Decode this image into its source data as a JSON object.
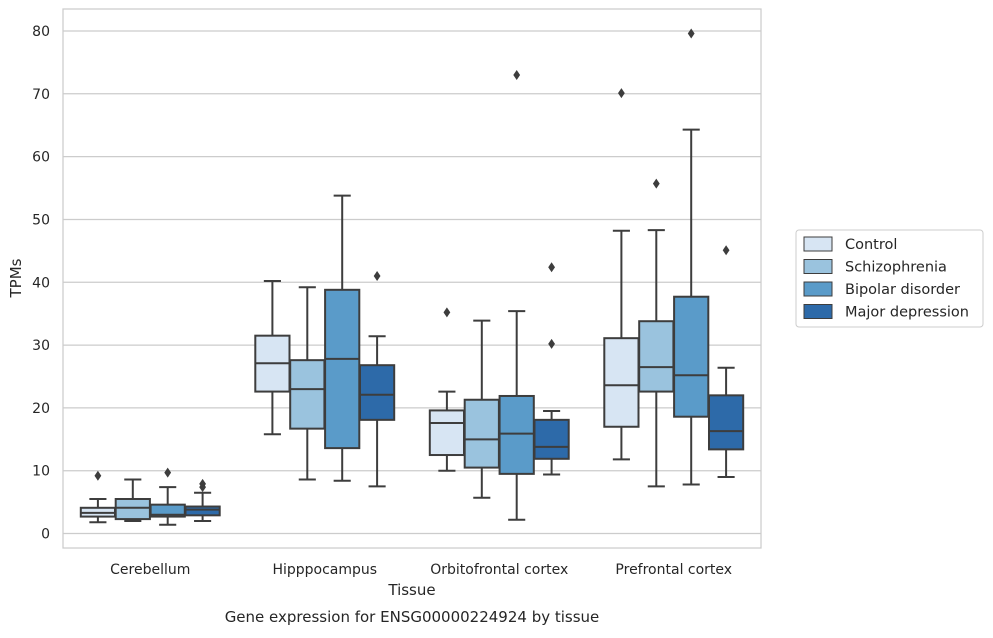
{
  "chart_data": {
    "type": "box",
    "xlabel": "Tissue",
    "ylabel": "TPMs",
    "caption": "Gene expression for ENSG00000224924 by tissue",
    "ylim": [
      -2.3,
      83.5
    ],
    "yticks": [
      0,
      10,
      20,
      30,
      40,
      50,
      60,
      70,
      80
    ],
    "grid": "horizontal",
    "legend_placement": "outside-right",
    "categories": [
      "Cerebellum",
      "Hipppocampus",
      "Orbitofrontal cortex",
      "Prefrontal cortex"
    ],
    "series": [
      {
        "name": "Control",
        "color": "#d7e5f3",
        "boxes": [
          {
            "whislo": 1.8,
            "q1": 2.7,
            "med": 3.3,
            "q3": 4.1,
            "whishi": 5.5,
            "fliers": [
              9.2
            ]
          },
          {
            "whislo": 15.8,
            "q1": 22.6,
            "med": 27.1,
            "q3": 31.5,
            "whishi": 40.2,
            "fliers": []
          },
          {
            "whislo": 10.0,
            "q1": 12.5,
            "med": 17.6,
            "q3": 19.6,
            "whishi": 22.6,
            "fliers": [
              35.2
            ]
          },
          {
            "whislo": 11.8,
            "q1": 17.0,
            "med": 23.6,
            "q3": 31.1,
            "whishi": 48.2,
            "fliers": [
              70.1
            ]
          }
        ]
      },
      {
        "name": "Schizophrenia",
        "color": "#9ac3de",
        "boxes": [
          {
            "whislo": 2.0,
            "q1": 2.3,
            "med": 4.1,
            "q3": 5.5,
            "whishi": 8.6,
            "fliers": []
          },
          {
            "whislo": 8.6,
            "q1": 16.7,
            "med": 23.0,
            "q3": 27.6,
            "whishi": 39.2,
            "fliers": []
          },
          {
            "whislo": 5.7,
            "q1": 10.5,
            "med": 15.0,
            "q3": 21.3,
            "whishi": 33.9,
            "fliers": []
          },
          {
            "whislo": 7.5,
            "q1": 22.6,
            "med": 26.5,
            "q3": 33.8,
            "whishi": 48.3,
            "fliers": [
              55.7
            ]
          }
        ]
      },
      {
        "name": "Bipolar disorder",
        "color": "#5a9bc9",
        "boxes": [
          {
            "whislo": 1.4,
            "q1": 2.7,
            "med": 3.0,
            "q3": 4.6,
            "whishi": 7.4,
            "fliers": [
              9.7
            ]
          },
          {
            "whislo": 8.4,
            "q1": 13.6,
            "med": 27.8,
            "q3": 38.8,
            "whishi": 53.8,
            "fliers": []
          },
          {
            "whislo": 2.2,
            "q1": 9.5,
            "med": 15.9,
            "q3": 21.9,
            "whishi": 35.4,
            "fliers": [
              73.0
            ]
          },
          {
            "whislo": 7.8,
            "q1": 18.6,
            "med": 25.2,
            "q3": 37.7,
            "whishi": 64.3,
            "fliers": [
              79.6
            ]
          }
        ]
      },
      {
        "name": "Major depression",
        "color": "#2d6aa9",
        "boxes": [
          {
            "whislo": 2.0,
            "q1": 2.9,
            "med": 3.8,
            "q3": 4.3,
            "whishi": 6.5,
            "fliers": [
              7.4,
              7.9
            ]
          },
          {
            "whislo": 7.5,
            "q1": 18.1,
            "med": 22.1,
            "q3": 26.8,
            "whishi": 31.4,
            "fliers": [
              41.0
            ]
          },
          {
            "whislo": 9.4,
            "q1": 11.9,
            "med": 13.8,
            "q3": 18.1,
            "whishi": 19.5,
            "fliers": [
              30.2,
              42.4
            ]
          },
          {
            "whislo": 9.0,
            "q1": 13.4,
            "med": 16.3,
            "q3": 22.0,
            "whishi": 26.4,
            "fliers": [
              45.1
            ]
          }
        ]
      }
    ]
  }
}
